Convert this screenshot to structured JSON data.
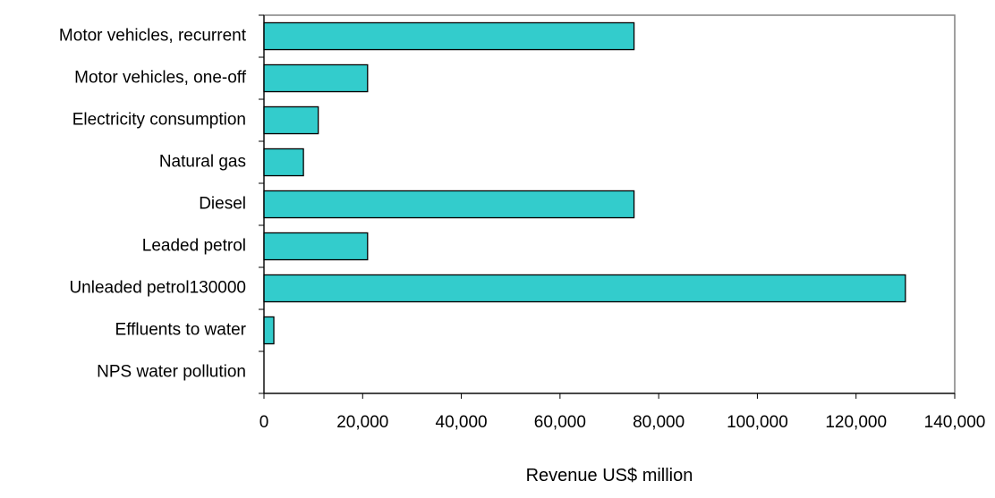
{
  "chart_data": {
    "type": "bar",
    "orientation": "horizontal",
    "title": "",
    "xlabel": "Revenue US$ million",
    "ylabel": "",
    "categories": [
      "Motor vehicles, recurrent",
      "Motor vehicles, one-off",
      "Electricity consumption",
      "Natural gas",
      "Diesel",
      "Leaded petrol",
      "Unleaded petrol130000",
      "Effluents to water",
      "NPS water pollution"
    ],
    "values": [
      75000,
      21000,
      11000,
      8000,
      75000,
      21000,
      130000,
      2000,
      0
    ],
    "xlim": [
      0,
      140000
    ],
    "x_ticks": [
      0,
      20000,
      40000,
      60000,
      80000,
      100000,
      120000,
      140000
    ],
    "x_tick_labels": [
      "0",
      "20,000",
      "40,000",
      "60,000",
      "80,000",
      "100,000",
      "120,000",
      "140,000"
    ],
    "bar_color": "#33CCCC",
    "bar_edge_color": "#000000",
    "grid": false,
    "legend": "none"
  }
}
